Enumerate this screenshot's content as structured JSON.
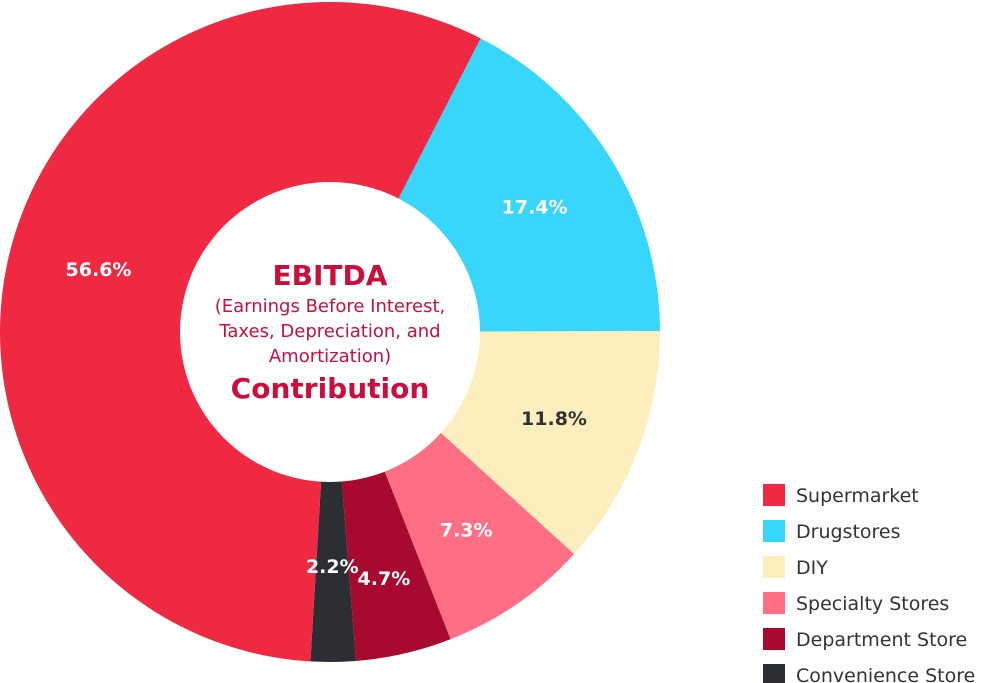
{
  "chart_data": {
    "type": "pie",
    "categories": [
      "Supermarket",
      "Drugstores",
      "DIY",
      "Specialty Stores",
      "Department Store",
      "Convenience Store"
    ],
    "values": [
      56.6,
      17.4,
      11.8,
      7.3,
      4.7,
      2.2
    ],
    "value_labels": [
      "56.6%",
      "17.4%",
      "11.8%",
      "7.3%",
      "4.7%",
      "2.2%"
    ],
    "colors": [
      "#ee2941",
      "#38d6fb",
      "#fcefbd",
      "#fe6e84",
      "#a7092f",
      "#2c2e33"
    ],
    "label_colors": [
      "#ffffff",
      "#ffffff",
      "#333333",
      "#ffffff",
      "#ffffff",
      "#ffffff"
    ],
    "title_lines": [
      "EBITDA",
      "(Earnings Before Interest,",
      "Taxes, Depreciation, and",
      "Amortization)",
      "Contribution"
    ],
    "title_color": "#cc0e3d",
    "donut": true,
    "legend_position": "bottom-right"
  }
}
